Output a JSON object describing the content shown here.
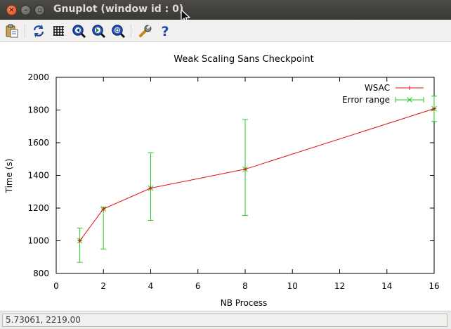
{
  "window": {
    "title": "Gnuplot (window id : 0)",
    "close_glyph": "×",
    "minimize_glyph": "–",
    "maximize_glyph": "▫"
  },
  "toolbar": {
    "buttons": [
      {
        "name": "copy-clipboard-button",
        "icon": "clipboard-icon"
      },
      {
        "name": "replot-button",
        "icon": "refresh-icon"
      },
      {
        "name": "grid-button",
        "icon": "grid-icon"
      },
      {
        "name": "zoom-previous-button",
        "icon": "zoom-back-icon"
      },
      {
        "name": "zoom-next-button",
        "icon": "zoom-forward-icon"
      },
      {
        "name": "autoscale-button",
        "icon": "zoom-fit-icon"
      },
      {
        "name": "settings-button",
        "icon": "wrench-icon"
      },
      {
        "name": "help-button",
        "icon": "help-icon"
      }
    ]
  },
  "status": {
    "text": "5.73061,  2219.00"
  },
  "chart_data": {
    "type": "line",
    "title": "Weak Scaling Sans Checkpoint",
    "xlabel": "NB Process",
    "ylabel": "Time (s)",
    "xlim": [
      0,
      16
    ],
    "ylim": [
      800,
      2000
    ],
    "xticks": [
      0,
      2,
      4,
      6,
      8,
      10,
      12,
      14,
      16
    ],
    "yticks": [
      800,
      1000,
      1200,
      1400,
      1600,
      1800,
      2000
    ],
    "grid": false,
    "legend_position": "top-right",
    "series": [
      {
        "name": "WSAC",
        "color": "#e01010",
        "style": "line",
        "x": [
          1,
          2,
          4,
          8,
          16
        ],
        "y": [
          1000,
          1195,
          1322,
          1438,
          1808
        ]
      },
      {
        "name": "Error range",
        "color": "#22cc22",
        "style": "errorbars",
        "x": [
          1,
          2,
          4,
          8,
          16
        ],
        "y": [
          1000,
          1195,
          1322,
          1438,
          1808
        ],
        "ylow": [
          868,
          950,
          1125,
          1155,
          1730
        ],
        "yhigh": [
          1078,
          1205,
          1538,
          1742,
          1885
        ]
      }
    ]
  }
}
